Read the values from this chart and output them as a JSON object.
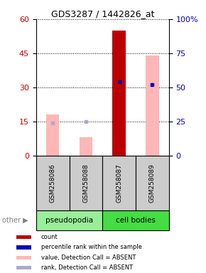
{
  "title": "GDS3287 / 1442826_at",
  "samples": [
    "GSM258086",
    "GSM258088",
    "GSM258087",
    "GSM258089"
  ],
  "ylim_left": [
    0,
    60
  ],
  "ylim_right": [
    0,
    100
  ],
  "yticks_left": [
    0,
    15,
    30,
    45,
    60
  ],
  "yticks_right": [
    0,
    25,
    50,
    75,
    100
  ],
  "yticklabels_right": [
    "0",
    "25",
    "50",
    "75",
    "100%"
  ],
  "bar_count_color": "#BB0000",
  "bar_value_absent_color": "#FFB6B6",
  "dot_percentile_color": "#0000BB",
  "dot_rank_absent_color": "#AAAACC",
  "count_values": [
    null,
    null,
    55,
    null
  ],
  "value_absent": [
    18,
    8,
    null,
    44
  ],
  "percentile_rank": [
    null,
    null,
    54,
    52
  ],
  "rank_absent": [
    24,
    25,
    null,
    52
  ],
  "bar_width": 0.4,
  "left_axis_color": "#CC0000",
  "right_axis_color": "#0000CC",
  "group_left_color": "#99EE99",
  "group_right_color": "#44DD44",
  "legend_items": [
    {
      "color": "#BB0000",
      "label": "count"
    },
    {
      "color": "#0000BB",
      "label": "percentile rank within the sample"
    },
    {
      "color": "#FFB6B6",
      "label": "value, Detection Call = ABSENT"
    },
    {
      "color": "#AAAACC",
      "label": "rank, Detection Call = ABSENT"
    }
  ]
}
